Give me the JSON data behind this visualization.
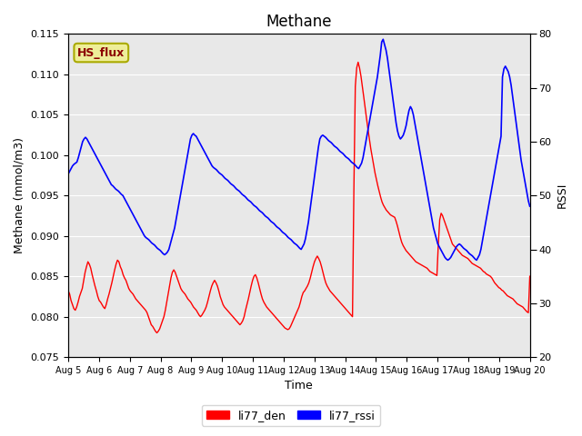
{
  "title": "Methane",
  "xlabel": "Time",
  "ylabel_left": "Methane (mmol/m3)",
  "ylabel_right": "RSSI",
  "ylim_left": [
    0.075,
    0.115
  ],
  "ylim_right": [
    20,
    80
  ],
  "xlim": [
    0,
    15
  ],
  "xtick_labels": [
    "Aug 5",
    "Aug 6",
    "Aug 7",
    "Aug 8",
    "Aug 9",
    "Aug 10",
    "Aug 11",
    "Aug 12",
    "Aug 13",
    "Aug 14",
    "Aug 15",
    "Aug 16",
    "Aug 17",
    "Aug 18",
    "Aug 19",
    "Aug 20"
  ],
  "xtick_positions": [
    0,
    1,
    2,
    3,
    4,
    5,
    6,
    7,
    8,
    9,
    10,
    11,
    12,
    13,
    14,
    15
  ],
  "annotation_text": "HS_flux",
  "annotation_bg": "#EEEE99",
  "annotation_border": "#AAAA00",
  "legend_labels": [
    "li77_den",
    "li77_rssi"
  ],
  "line_colors": [
    "red",
    "blue"
  ],
  "bg_color": "#E8E8E8",
  "red_data_y": [
    0.0832,
    0.0828,
    0.082,
    0.0815,
    0.081,
    0.0808,
    0.0812,
    0.0818,
    0.0825,
    0.083,
    0.0835,
    0.0845,
    0.0855,
    0.0862,
    0.0868,
    0.0865,
    0.086,
    0.0852,
    0.0845,
    0.0838,
    0.0832,
    0.0825,
    0.082,
    0.0818,
    0.0815,
    0.0812,
    0.081,
    0.0815,
    0.0822,
    0.0828,
    0.0835,
    0.0842,
    0.085,
    0.0858,
    0.0865,
    0.087,
    0.0868,
    0.0862,
    0.0858,
    0.0852,
    0.0848,
    0.0845,
    0.084,
    0.0835,
    0.0832,
    0.083,
    0.0828,
    0.0825,
    0.0822,
    0.082,
    0.0818,
    0.0816,
    0.0814,
    0.0812,
    0.081,
    0.0808,
    0.0805,
    0.08,
    0.0795,
    0.079,
    0.0788,
    0.0785,
    0.0782,
    0.078,
    0.0782,
    0.0785,
    0.079,
    0.0795,
    0.08,
    0.0808,
    0.0818,
    0.0828,
    0.0838,
    0.0848,
    0.0855,
    0.0858,
    0.0855,
    0.085,
    0.0845,
    0.084,
    0.0835,
    0.0832,
    0.083,
    0.0828,
    0.0825,
    0.0822,
    0.082,
    0.0818,
    0.0815,
    0.0812,
    0.081,
    0.0808,
    0.0805,
    0.0802,
    0.08,
    0.0802,
    0.0805,
    0.0808,
    0.0812,
    0.0818,
    0.0825,
    0.0832,
    0.0838,
    0.0842,
    0.0845,
    0.0842,
    0.0838,
    0.0832,
    0.0825,
    0.082,
    0.0815,
    0.0812,
    0.081,
    0.0808,
    0.0806,
    0.0804,
    0.0802,
    0.08,
    0.0798,
    0.0796,
    0.0794,
    0.0792,
    0.079,
    0.0792,
    0.0795,
    0.08,
    0.0808,
    0.0815,
    0.0822,
    0.083,
    0.0838,
    0.0845,
    0.085,
    0.0852,
    0.0848,
    0.0842,
    0.0835,
    0.0828,
    0.0822,
    0.0818,
    0.0815,
    0.0812,
    0.081,
    0.0808,
    0.0806,
    0.0804,
    0.0802,
    0.08,
    0.0798,
    0.0796,
    0.0794,
    0.0792,
    0.079,
    0.0788,
    0.0786,
    0.0785,
    0.0784,
    0.0785,
    0.0788,
    0.0792,
    0.0796,
    0.08,
    0.0804,
    0.0808,
    0.0812,
    0.0818,
    0.0825,
    0.083,
    0.0832,
    0.0835,
    0.0838,
    0.0842,
    0.0848,
    0.0855,
    0.0862,
    0.0868,
    0.0872,
    0.0875,
    0.0872,
    0.0868,
    0.0862,
    0.0855,
    0.0848,
    0.0842,
    0.0838,
    0.0835,
    0.0832,
    0.083,
    0.0828,
    0.0826,
    0.0824,
    0.0822,
    0.082,
    0.0818,
    0.0816,
    0.0814,
    0.0812,
    0.081,
    0.0808,
    0.0806,
    0.0804,
    0.0802,
    0.08,
    0.0958,
    0.1085,
    0.1108,
    0.1115,
    0.1108,
    0.1098,
    0.1085,
    0.1072,
    0.1058,
    0.1045,
    0.1032,
    0.102,
    0.1008,
    0.0998,
    0.0988,
    0.0978,
    0.097,
    0.0962,
    0.0955,
    0.0948,
    0.0942,
    0.0938,
    0.0935,
    0.0932,
    0.093,
    0.0928,
    0.0926,
    0.0925,
    0.0924,
    0.0923,
    0.0918,
    0.0912,
    0.0905,
    0.0898,
    0.0892,
    0.0888,
    0.0885,
    0.0882,
    0.088,
    0.0878,
    0.0876,
    0.0874,
    0.0872,
    0.087,
    0.0868,
    0.0867,
    0.0866,
    0.0865,
    0.0864,
    0.0863,
    0.0862,
    0.0861,
    0.086,
    0.0858,
    0.0856,
    0.0855,
    0.0854,
    0.0853,
    0.0852,
    0.0851,
    0.089,
    0.092,
    0.0928,
    0.0925,
    0.092,
    0.0915,
    0.091,
    0.0905,
    0.09,
    0.0895,
    0.089,
    0.0888,
    0.0886,
    0.0884,
    0.0882,
    0.088,
    0.0878,
    0.0876,
    0.0875,
    0.0874,
    0.0873,
    0.0872,
    0.087,
    0.0868,
    0.0866,
    0.0865,
    0.0864,
    0.0863,
    0.0862,
    0.0861,
    0.086,
    0.0858,
    0.0856,
    0.0855,
    0.0853,
    0.0852,
    0.0851,
    0.085,
    0.0848,
    0.0845,
    0.0842,
    0.084,
    0.0838,
    0.0836,
    0.0835,
    0.0833,
    0.0832,
    0.083,
    0.0828,
    0.0826,
    0.0825,
    0.0824,
    0.0823,
    0.0822,
    0.082,
    0.0818,
    0.0816,
    0.0815,
    0.0814,
    0.0813,
    0.0812,
    0.081,
    0.0808,
    0.0806,
    0.0805,
    0.085
  ],
  "blue_data_y": [
    54.0,
    54.5,
    55.0,
    55.5,
    55.8,
    56.0,
    56.2,
    57.0,
    58.0,
    59.0,
    60.0,
    60.5,
    60.8,
    60.5,
    60.0,
    59.5,
    59.0,
    58.5,
    58.0,
    57.5,
    57.0,
    56.5,
    56.0,
    55.5,
    55.0,
    54.5,
    54.0,
    53.5,
    53.0,
    52.5,
    52.0,
    51.8,
    51.5,
    51.2,
    51.0,
    50.8,
    50.5,
    50.2,
    50.0,
    49.5,
    49.0,
    48.5,
    48.0,
    47.5,
    47.0,
    46.5,
    46.0,
    45.5,
    45.0,
    44.5,
    44.0,
    43.5,
    43.0,
    42.5,
    42.2,
    42.0,
    41.8,
    41.5,
    41.2,
    41.0,
    40.8,
    40.5,
    40.2,
    40.0,
    39.8,
    39.5,
    39.2,
    39.0,
    39.2,
    39.5,
    40.0,
    41.0,
    42.0,
    43.0,
    44.0,
    45.5,
    47.0,
    48.5,
    50.0,
    51.5,
    53.0,
    54.5,
    56.0,
    57.5,
    59.0,
    60.5,
    61.2,
    61.5,
    61.2,
    61.0,
    60.5,
    60.0,
    59.5,
    59.0,
    58.5,
    58.0,
    57.5,
    57.0,
    56.5,
    56.0,
    55.5,
    55.2,
    55.0,
    54.8,
    54.5,
    54.2,
    54.0,
    53.8,
    53.5,
    53.2,
    53.0,
    52.8,
    52.5,
    52.2,
    52.0,
    51.8,
    51.5,
    51.2,
    51.0,
    50.8,
    50.5,
    50.2,
    50.0,
    49.8,
    49.5,
    49.2,
    49.0,
    48.8,
    48.5,
    48.2,
    48.0,
    47.8,
    47.5,
    47.2,
    47.0,
    46.8,
    46.5,
    46.2,
    46.0,
    45.8,
    45.5,
    45.2,
    45.0,
    44.8,
    44.5,
    44.2,
    44.0,
    43.8,
    43.5,
    43.2,
    43.0,
    42.8,
    42.5,
    42.2,
    42.0,
    41.8,
    41.5,
    41.2,
    41.0,
    40.8,
    40.5,
    40.2,
    40.0,
    40.5,
    41.0,
    42.0,
    43.5,
    45.0,
    47.0,
    49.0,
    51.0,
    53.0,
    55.0,
    57.0,
    59.0,
    60.5,
    61.0,
    61.2,
    61.0,
    60.8,
    60.5,
    60.2,
    60.0,
    59.8,
    59.5,
    59.2,
    59.0,
    58.8,
    58.5,
    58.2,
    58.0,
    57.8,
    57.5,
    57.2,
    57.0,
    56.8,
    56.5,
    56.2,
    56.0,
    55.8,
    55.5,
    55.2,
    55.0,
    55.5,
    56.0,
    57.0,
    58.5,
    60.0,
    61.5,
    63.0,
    64.5,
    66.0,
    67.5,
    69.0,
    70.5,
    72.0,
    74.0,
    76.0,
    78.5,
    79.0,
    78.0,
    77.0,
    75.5,
    73.5,
    71.5,
    69.5,
    67.5,
    65.5,
    63.5,
    62.0,
    61.0,
    60.5,
    60.8,
    61.2,
    62.0,
    63.0,
    64.5,
    65.8,
    66.5,
    66.0,
    65.0,
    63.5,
    62.0,
    60.5,
    59.0,
    57.5,
    56.0,
    54.5,
    53.0,
    51.5,
    50.0,
    48.5,
    47.0,
    45.5,
    44.0,
    43.0,
    42.0,
    41.0,
    40.5,
    40.0,
    39.5,
    39.0,
    38.5,
    38.2,
    38.0,
    38.2,
    38.5,
    39.0,
    39.5,
    40.0,
    40.5,
    40.8,
    41.0,
    40.8,
    40.5,
    40.2,
    40.0,
    39.8,
    39.5,
    39.2,
    39.0,
    38.8,
    38.5,
    38.2,
    38.0,
    38.5,
    39.0,
    40.0,
    41.5,
    43.0,
    44.5,
    46.0,
    47.5,
    49.0,
    50.5,
    52.0,
    53.5,
    55.0,
    56.5,
    58.0,
    59.5,
    61.0,
    72.0,
    73.5,
    74.0,
    73.5,
    73.0,
    72.0,
    70.5,
    68.5,
    66.5,
    64.5,
    62.5,
    60.5,
    58.5,
    56.5,
    55.0,
    53.5,
    52.0,
    50.5,
    49.0,
    48.0
  ]
}
